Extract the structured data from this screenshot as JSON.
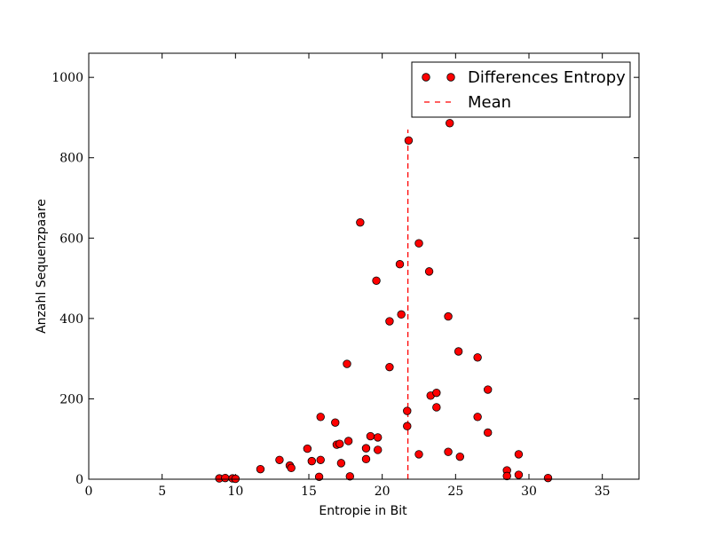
{
  "chart_data": {
    "type": "scatter",
    "title": "",
    "xlabel": "Entropie in Bit",
    "ylabel": "Anzahl Sequenzpaare",
    "xlim": [
      0,
      37.5
    ],
    "ylim": [
      0,
      1060
    ],
    "xticks": [
      0,
      5,
      10,
      15,
      20,
      25,
      30,
      35
    ],
    "yticks": [
      0,
      200,
      400,
      600,
      800,
      1000
    ],
    "grid": false,
    "legend": "top-right",
    "colors": {
      "marker": "#ff0000",
      "marker_edge": "#000000",
      "mean_line": "#ff0000"
    },
    "series": [
      {
        "name": "Differences Entropy",
        "style": "markers",
        "x": [
          8.9,
          9.3,
          9.8,
          10.0,
          11.7,
          13.0,
          13.7,
          13.8,
          14.9,
          15.2,
          15.7,
          15.8,
          15.8,
          16.8,
          16.9,
          17.1,
          17.2,
          17.6,
          17.7,
          17.8,
          18.5,
          18.9,
          18.9,
          19.2,
          19.6,
          19.7,
          19.7,
          20.5,
          20.5,
          21.2,
          21.3,
          21.7,
          21.7,
          21.8,
          22.5,
          22.5,
          23.2,
          23.3,
          23.7,
          23.7,
          24.5,
          24.5,
          24.6,
          25.2,
          25.3,
          26.5,
          26.5,
          27.2,
          27.2,
          28.5,
          28.5,
          29.3,
          29.3,
          31.3
        ],
        "y": [
          2,
          3,
          2,
          1,
          25,
          48,
          34,
          28,
          76,
          45,
          6,
          48,
          155,
          141,
          86,
          88,
          40,
          287,
          95,
          7,
          639,
          77,
          50,
          107,
          494,
          73,
          104,
          393,
          279,
          535,
          410,
          132,
          170,
          843,
          587,
          62,
          517,
          208,
          215,
          179,
          405,
          68,
          886,
          318,
          56,
          303,
          155,
          223,
          116,
          22,
          8,
          62,
          11,
          3
        ]
      },
      {
        "name": "Mean",
        "style": "dashed-vertical-line",
        "x": 21.75,
        "y_range": [
          0,
          870
        ]
      }
    ]
  }
}
